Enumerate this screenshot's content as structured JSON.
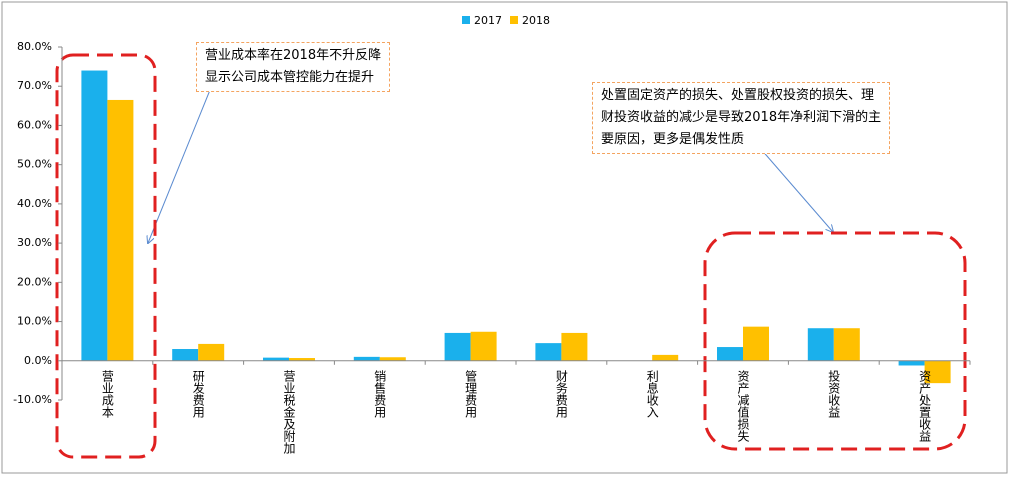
{
  "chart_data": {
    "type": "bar",
    "categories": [
      "营业成本",
      "研发费用",
      "营业税金及附加",
      "销售费用",
      "管理费用",
      "财务费用",
      "利息收入",
      "资产减值损失",
      "投资收益",
      "资产处置收益"
    ],
    "series": [
      {
        "name": "2017",
        "color": "#1ab0ec",
        "values": [
          74,
          3,
          0.8,
          1.0,
          7.1,
          4.5,
          0,
          3.5,
          8.3,
          -1.2
        ]
      },
      {
        "name": "2018",
        "color": "#ffc000",
        "values": [
          66.5,
          4.3,
          0.7,
          0.9,
          7.4,
          7.1,
          1.5,
          8.7,
          8.3,
          -5.7
        ]
      }
    ],
    "ylim": [
      -10,
      80
    ],
    "yticks": [
      {
        "value": -10,
        "label": "-10.0%"
      },
      {
        "value": 0,
        "label": "0.0%"
      },
      {
        "value": 10,
        "label": "10.0%"
      },
      {
        "value": 20,
        "label": "20.0%"
      },
      {
        "value": 30,
        "label": "30.0%"
      },
      {
        "value": 40,
        "label": "40.0%"
      },
      {
        "value": 50,
        "label": "50.0%"
      },
      {
        "value": 60,
        "label": "60.0%"
      },
      {
        "value": 70,
        "label": "70.0%"
      },
      {
        "value": 80,
        "label": "80.0%"
      }
    ],
    "annotations": [
      {
        "lines": [
          "营业成本率在2018年不升反降",
          "显示公司成本管控能力在提升"
        ]
      },
      {
        "lines": [
          "处置固定资产的损失、处置股权投资的损失、理",
          "财投资收益的减少是导致2018年净利润下滑的主",
          "要原因，更多是偶发性质"
        ]
      }
    ]
  }
}
